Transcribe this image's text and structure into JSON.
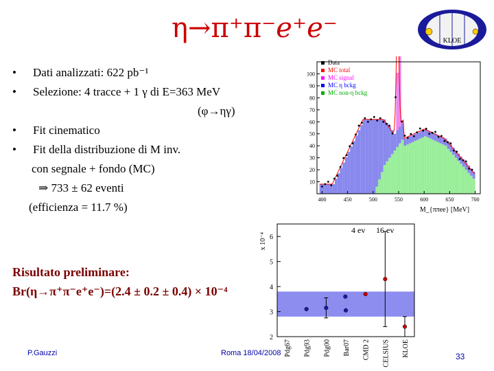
{
  "title": {
    "main": "η→π⁺π⁻",
    "italic": "e⁺e⁻"
  },
  "logo_text": "KLOE",
  "bullets": [
    {
      "marker": "•",
      "text": "Dati analizzati: 622 pb⁻¹"
    },
    {
      "marker": "•",
      "text": "Selezione: 4 tracce + 1 γ di E=363 MeV"
    }
  ],
  "phi_decay": "(φ→ηγ)",
  "bullets2": [
    {
      "marker": "•",
      "text": "Fit cinematico"
    },
    {
      "marker": "•",
      "text": "Fit della distribuzione di M inv."
    }
  ],
  "sub_lines": {
    "signal_bg": "con segnale + fondo (MC)",
    "events": "⇒  733 ± 62 eventi",
    "efficiency": "(efficienza = 11.7 %)"
  },
  "result": {
    "heading": "Risultato preliminare:",
    "value": "Br(η→π⁺π⁻e⁺e⁻)=(2.4 ± 0.2 ± 0.4) × 10⁻⁴"
  },
  "footer": {
    "author": "P.Gauzzi",
    "place_date": "Roma 18/04/2008",
    "page": "33"
  },
  "chart_data": [
    {
      "type": "bar",
      "legend": [
        "Data",
        "MC total",
        "MC signal",
        "MC η bckg",
        "MC non-η bckg"
      ],
      "legend_colors": [
        "#000000",
        "#ff0000",
        "#ff00ff",
        "#0000ff",
        "#00aa00"
      ],
      "xlabel": "M_{ππee} [MeV]",
      "x_ticks": [
        "400",
        "450",
        "500",
        "550",
        "600",
        "650",
        "700"
      ],
      "y_ticks": [
        "10",
        "20",
        "30",
        "40",
        "50",
        "60",
        "70",
        "80",
        "90",
        "100"
      ]
    },
    {
      "type": "scatter",
      "ylabel": "x 10⁻⁴",
      "y_ticks": [
        "2",
        "3",
        "4",
        "5",
        "6"
      ],
      "ylim": [
        2,
        6.5
      ],
      "annotations": [
        "4 ev",
        "16 ev"
      ],
      "categories": [
        "Pdg67",
        "Pdg93",
        "Pdg00",
        "Bar07",
        "CMD 2",
        "CELSIUS",
        "KLOE"
      ],
      "band": [
        2.8,
        3.8
      ],
      "points": [
        {
          "label": "Pdg93",
          "value": 3.1
        },
        {
          "label": "Pdg00",
          "value": 3.15,
          "err": 0.4
        },
        {
          "label": "Pdg00",
          "value": 3.6
        },
        {
          "label": "Bar07",
          "value": 3.05
        },
        {
          "label": "CMD 2",
          "value": 3.7
        },
        {
          "label": "CELSIUS",
          "value": 4.3,
          "err": 1.9
        },
        {
          "label": "KLOE",
          "value": 2.4,
          "err": 0.4
        }
      ]
    }
  ]
}
